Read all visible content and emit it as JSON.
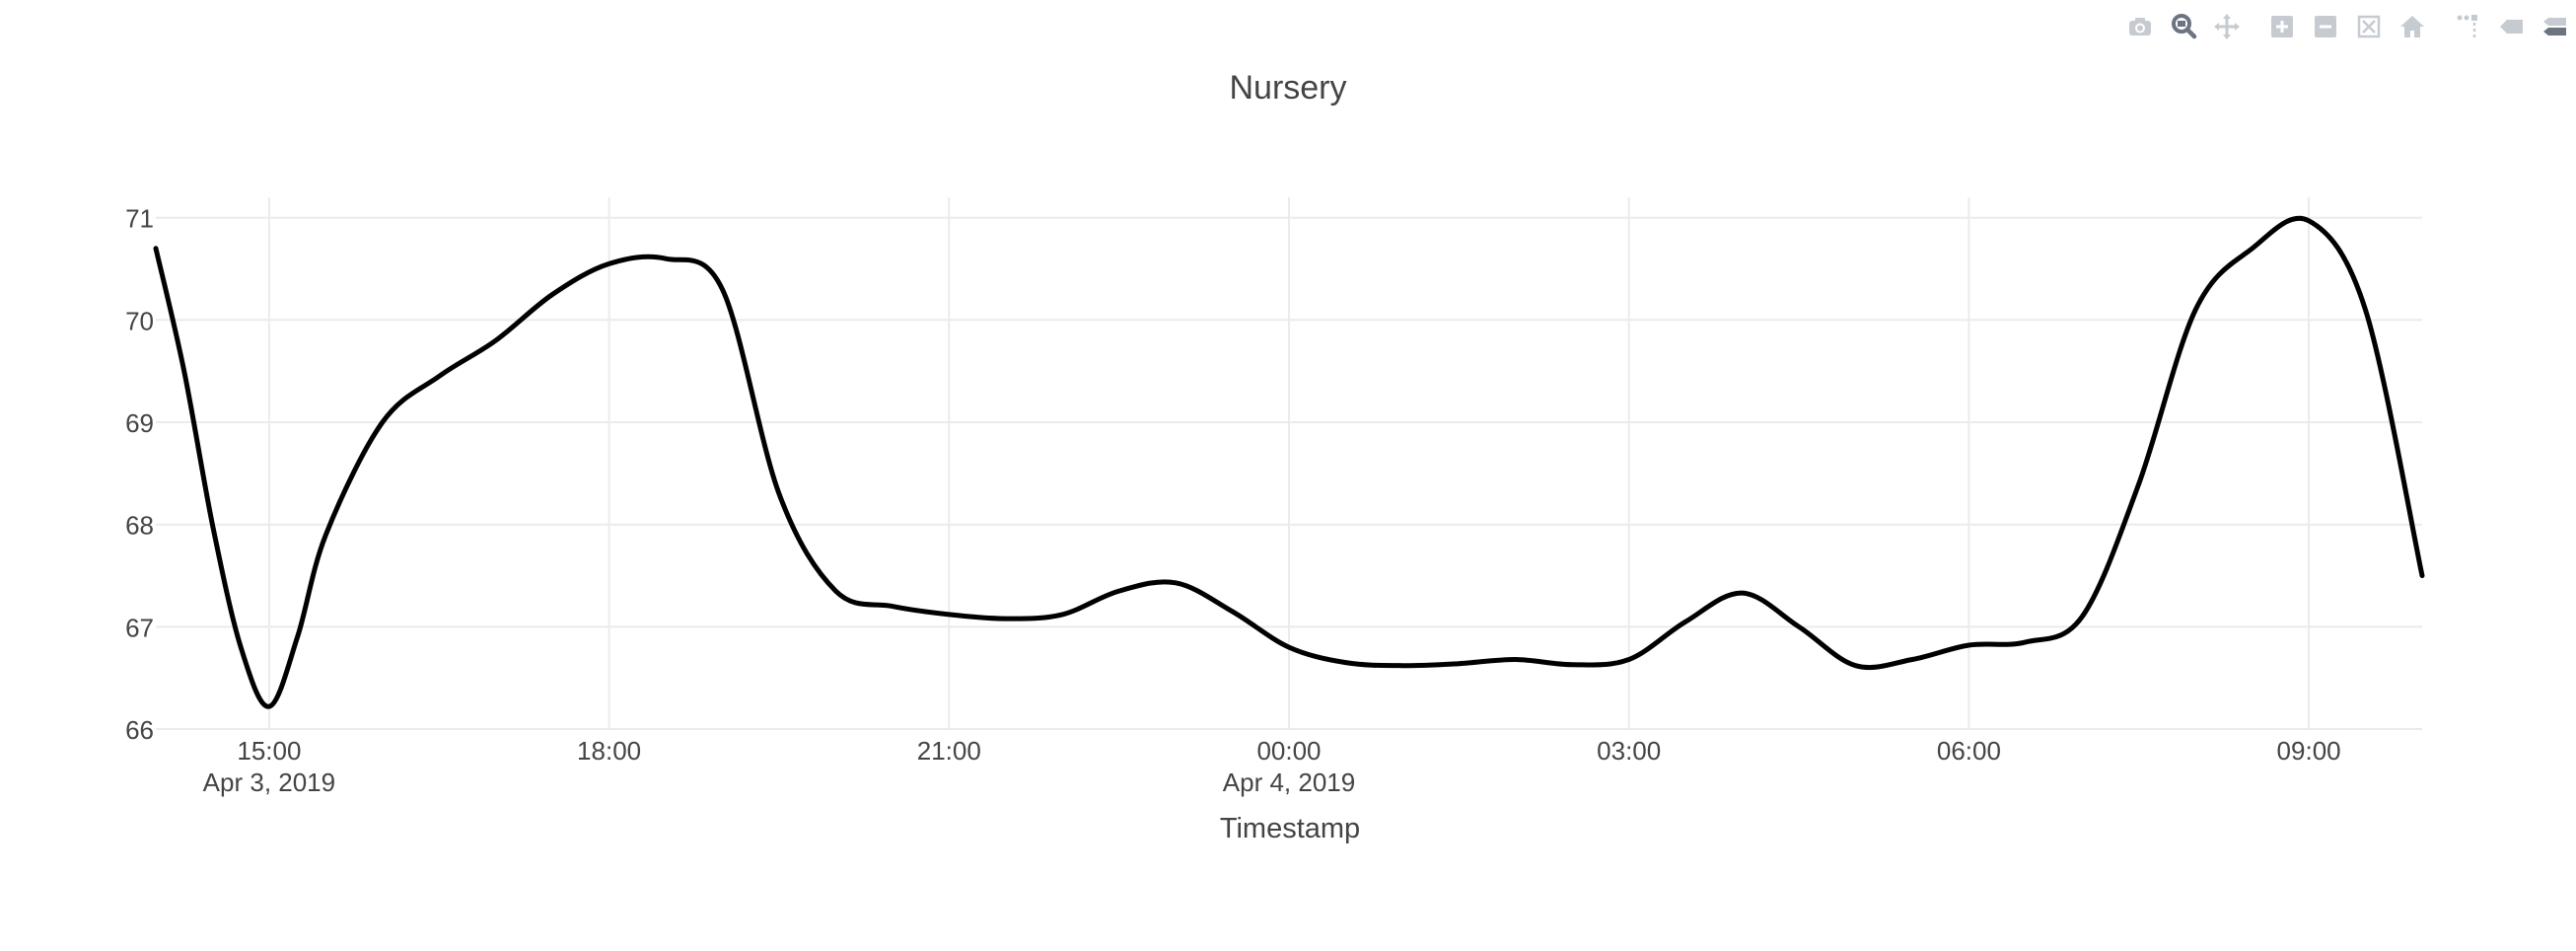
{
  "modebar": {
    "buttons": [
      {
        "icon": "camera-icon",
        "label": "Download plot as a png"
      },
      {
        "icon": "zoom-icon",
        "label": "Zoom"
      },
      {
        "icon": "pan-icon",
        "label": "Pan"
      },
      {
        "icon": "zoom-in-icon",
        "label": "Zoom in"
      },
      {
        "icon": "zoom-out-icon",
        "label": "Zoom out"
      },
      {
        "icon": "autoscale-icon",
        "label": "Autoscale"
      },
      {
        "icon": "home-icon",
        "label": "Reset axes"
      },
      {
        "icon": "spike-lines-icon",
        "label": "Toggle Spike Lines"
      },
      {
        "icon": "hover-closest-icon",
        "label": "Show closest data on hover"
      },
      {
        "icon": "hover-compare-icon",
        "label": "Compare data on hover"
      }
    ],
    "icon_color": "#c6cbd1",
    "active_color": "#6b7480"
  },
  "chart_data": {
    "type": "line",
    "title": "Nursery",
    "xlabel": "Timestamp",
    "ylabel": "",
    "x_ticks": [
      {
        "value": "2019-04-03 15:00",
        "label": "15:00",
        "sublabel": "Apr 3, 2019"
      },
      {
        "value": "2019-04-03 18:00",
        "label": "18:00",
        "sublabel": ""
      },
      {
        "value": "2019-04-03 21:00",
        "label": "21:00",
        "sublabel": ""
      },
      {
        "value": "2019-04-04 00:00",
        "label": "00:00",
        "sublabel": "Apr 4, 2019"
      },
      {
        "value": "2019-04-04 03:00",
        "label": "03:00",
        "sublabel": ""
      },
      {
        "value": "2019-04-04 06:00",
        "label": "06:00",
        "sublabel": ""
      },
      {
        "value": "2019-04-04 09:00",
        "label": "09:00",
        "sublabel": ""
      }
    ],
    "y_ticks": [
      66,
      67,
      68,
      69,
      70,
      71
    ],
    "xlim": [
      "2019-04-03 14:00",
      "2019-04-04 10:00"
    ],
    "ylim": [
      66,
      71.2
    ],
    "grid": true,
    "line_color": "#000000",
    "series": [
      {
        "x": [
          "2019-04-03 14:00",
          "2019-04-03 14:15",
          "2019-04-03 14:30",
          "2019-04-03 14:45",
          "2019-04-03 15:00",
          "2019-04-03 15:15",
          "2019-04-03 15:30",
          "2019-04-03 16:00",
          "2019-04-03 16:30",
          "2019-04-03 17:00",
          "2019-04-03 17:30",
          "2019-04-03 18:00",
          "2019-04-03 18:30",
          "2019-04-03 19:00",
          "2019-04-03 19:30",
          "2019-04-03 20:00",
          "2019-04-03 20:30",
          "2019-04-03 21:00",
          "2019-04-03 21:30",
          "2019-04-03 22:00",
          "2019-04-03 22:30",
          "2019-04-03 23:00",
          "2019-04-03 23:30",
          "2019-04-04 00:00",
          "2019-04-04 00:30",
          "2019-04-04 01:00",
          "2019-04-04 01:30",
          "2019-04-04 02:00",
          "2019-04-04 02:30",
          "2019-04-04 03:00",
          "2019-04-04 03:30",
          "2019-04-04 04:00",
          "2019-04-04 04:30",
          "2019-04-04 05:00",
          "2019-04-04 05:30",
          "2019-04-04 06:00",
          "2019-04-04 06:30",
          "2019-04-04 07:00",
          "2019-04-04 07:30",
          "2019-04-04 08:00",
          "2019-04-04 08:30",
          "2019-04-04 09:00",
          "2019-04-04 09:30",
          "2019-04-04 10:00"
        ],
        "values": [
          70.7,
          69.5,
          68.0,
          66.8,
          66.22,
          66.9,
          67.9,
          69.0,
          69.45,
          69.8,
          70.25,
          70.55,
          70.6,
          70.3,
          68.3,
          67.35,
          67.2,
          67.12,
          67.08,
          67.12,
          67.35,
          67.43,
          67.15,
          66.8,
          66.65,
          66.62,
          66.64,
          66.68,
          66.63,
          66.68,
          67.05,
          67.33,
          67.0,
          66.62,
          66.68,
          66.82,
          66.85,
          67.1,
          68.4,
          70.1,
          70.7,
          70.97,
          70.1,
          67.5
        ]
      }
    ]
  }
}
